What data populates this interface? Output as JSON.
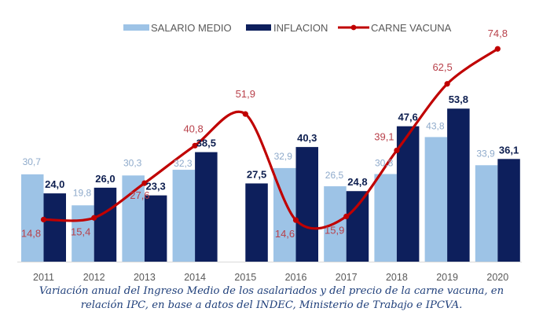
{
  "chart_data": {
    "type": "bar",
    "title": "",
    "xlabel": "",
    "ylabel": "",
    "ylim": [
      0,
      92
    ],
    "grid": false,
    "legend_position": "top",
    "categories": [
      "2011",
      "2012",
      "2013",
      "2014",
      "2015",
      "2016",
      "2017",
      "2018",
      "2019",
      "2020"
    ],
    "series": [
      {
        "name": "SALARIO MEDIO",
        "kind": "bar",
        "color": "#9dc3e6",
        "values": [
          30.7,
          19.8,
          30.3,
          32.3,
          null,
          32.9,
          26.5,
          30.8,
          43.8,
          33.9
        ],
        "labels": [
          "30,7",
          "19,8",
          "30,3",
          "32,3",
          "",
          "32,9",
          "26,5",
          "30,8",
          "43,8",
          "33,9"
        ]
      },
      {
        "name": "INFLACION",
        "kind": "bar",
        "color": "#0d1f5c",
        "values": [
          24.0,
          26.0,
          23.3,
          38.5,
          27.5,
          40.3,
          24.8,
          47.6,
          53.8,
          36.1
        ],
        "labels": [
          "24,0",
          "26,0",
          "23,3",
          "38,5",
          "27,5",
          "40,3",
          "24,8",
          "47,6",
          "53,8",
          "36,1"
        ]
      },
      {
        "name": "CARNE VACUNA",
        "kind": "line",
        "color": "#c00000",
        "values": [
          14.8,
          15.4,
          27.6,
          40.8,
          51.9,
          14.6,
          15.9,
          39.1,
          62.5,
          74.8
        ],
        "labels": [
          "14,8",
          "15,4",
          "27,6",
          "40,8",
          "51,9",
          "14,6",
          "15,9",
          "39,1",
          "62,5",
          "74,8"
        ]
      }
    ]
  },
  "caption": {
    "line1": "Variación anual del Ingreso Medio de los asalariados y del precio de la carne vacuna, en",
    "line2": "relación IPC, en base a datos del INDEC, Ministerio de Trabajo e IPCVA."
  }
}
